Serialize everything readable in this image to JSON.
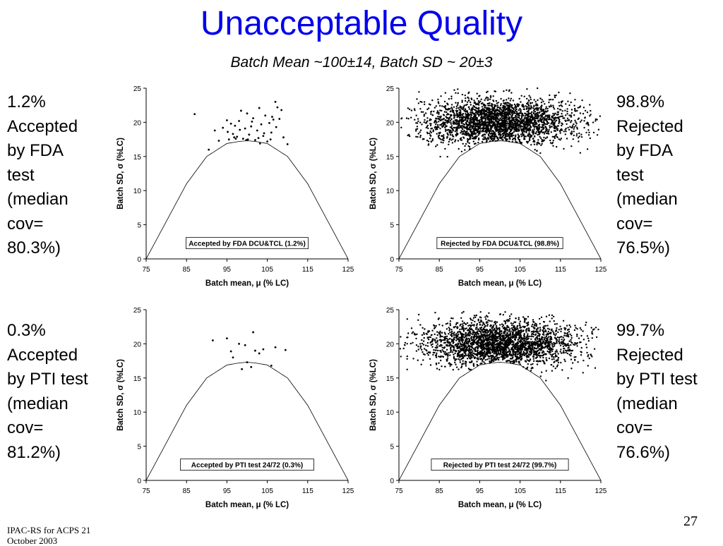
{
  "slide": {
    "title": "Unacceptable Quality",
    "subtitle": "Batch Mean ~100±14, Batch SD ~ 20±3",
    "left_texts": [
      "1.2%\nAccepted\nby FDA\ntest\n(median\ncov=\n80.3%)",
      "0.3%\nAccepted\nby PTI test\n(median\ncov=\n81.2%)"
    ],
    "right_texts": [
      "98.8%\nRejected\nby FDA\ntest\n(median\ncov=\n76.5%)",
      "99.7%\nRejected\nby PTI test\n(median\ncov=\n76.6%)"
    ],
    "footer": "IPAC-RS for ACPS 21\nOctober 2003",
    "page_number": "27"
  },
  "chart_data": [
    {
      "type": "scatter",
      "annotation": "Accepted by FDA DCU&TCL (1.2%)",
      "xlabel": "Batch mean, μ (% LC)",
      "ylabel": "Batch SD, σ (%LC)",
      "xlim": [
        75,
        125
      ],
      "ylim": [
        0,
        25
      ],
      "xticks": [
        75,
        85,
        95,
        105,
        115,
        125
      ],
      "yticks": [
        0,
        5,
        10,
        15,
        20,
        25
      ],
      "boundary": {
        "x": [
          75,
          80,
          85,
          90,
          95,
          98,
          100,
          102,
          105,
          110,
          115,
          120,
          125
        ],
        "y": [
          0,
          5.5,
          11.0,
          15.0,
          16.9,
          17.2,
          17.3,
          17.2,
          16.9,
          15.0,
          11.0,
          5.5,
          0
        ]
      },
      "points": {
        "x": [
          87,
          90.5,
          92,
          94,
          95,
          95.5,
          96,
          96.5,
          97,
          97.5,
          98,
          98.5,
          99,
          99.5,
          100,
          100.5,
          101,
          101.5,
          102,
          102.5,
          103,
          103.5,
          104,
          104.5,
          105,
          105.5,
          106,
          106.5,
          107,
          107.5,
          108,
          109,
          110,
          95.2,
          96.8,
          98.2,
          99.8,
          101.2,
          102.8,
          104.2,
          105.8,
          107.2,
          93,
          108.5,
          100.2,
          97.2,
          103.2,
          106.2
        ],
        "y": [
          21.2,
          16,
          18.8,
          19.2,
          20.3,
          17.5,
          19.8,
          18.3,
          19.5,
          17.9,
          20.2,
          21.7,
          17.6,
          19.1,
          21.3,
          18.2,
          19.4,
          20.6,
          17.4,
          18.8,
          22.1,
          19.7,
          18,
          21,
          17.2,
          19.9,
          18.5,
          20.4,
          23,
          22.2,
          20.5,
          17.8,
          16.8,
          18.6,
          17.8,
          18.9,
          17.4,
          20.1,
          17.7,
          18.4,
          17.5,
          19.3,
          17.3,
          21.8,
          17.5,
          17.6,
          16.9,
          20.8
        ]
      }
    },
    {
      "type": "scatter",
      "annotation": "Rejected by FDA DCU&TCL (98.8%)",
      "xlabel": "Batch mean, μ (% LC)",
      "ylabel": "Batch SD, σ (%LC)",
      "xlim": [
        75,
        125
      ],
      "ylim": [
        0,
        25
      ],
      "xticks": [
        75,
        85,
        95,
        105,
        115,
        125
      ],
      "yticks": [
        0,
        5,
        10,
        15,
        20,
        25
      ],
      "boundary": {
        "x": [
          75,
          80,
          85,
          90,
          95,
          98,
          100,
          102,
          105,
          110,
          115,
          120,
          125
        ],
        "y": [
          0,
          5.5,
          11.0,
          15.0,
          16.9,
          17.2,
          17.3,
          17.2,
          16.9,
          15.0,
          11.0,
          5.5,
          0
        ]
      },
      "cloud": {
        "n": 2600,
        "x_mean": 100,
        "x_sd": 9.5,
        "y_mean": 20,
        "y_sd": 1.7,
        "x_range": [
          75,
          125
        ],
        "y_range": [
          14.5,
          25
        ],
        "exclude_below_boundary": true
      }
    },
    {
      "type": "scatter",
      "annotation": "Accepted by PTI test 24/72 (0.3%)",
      "xlabel": "Batch mean, μ (% LC)",
      "ylabel": "Batch SD, σ (%LC)",
      "xlim": [
        75,
        125
      ],
      "ylim": [
        0,
        25
      ],
      "xticks": [
        75,
        85,
        95,
        105,
        115,
        125
      ],
      "yticks": [
        0,
        5,
        10,
        15,
        20,
        25
      ],
      "boundary": {
        "x": [
          75,
          80,
          85,
          90,
          95,
          98,
          100,
          102,
          105,
          110,
          115,
          120,
          125
        ],
        "y": [
          0,
          5.5,
          11.0,
          15.0,
          16.9,
          17.2,
          17.3,
          17.2,
          16.9,
          15.0,
          11.0,
          5.5,
          0
        ]
      },
      "points": {
        "x": [
          91.5,
          95,
          96,
          96.5,
          98,
          98.7,
          99.5,
          100,
          101,
          101.5,
          102,
          103,
          104,
          106,
          107,
          109.5
        ],
        "y": [
          20.5,
          20.8,
          18.9,
          18,
          20,
          16.3,
          19.8,
          17.3,
          16.6,
          21.7,
          19,
          18.6,
          19.2,
          16.8,
          19.5,
          19.1
        ]
      }
    },
    {
      "type": "scatter",
      "annotation": "Rejected by PTI test 24/72 (99.7%)",
      "xlabel": "Batch mean, μ (% LC)",
      "ylabel": "Batch SD, σ (%LC)",
      "xlim": [
        75,
        125
      ],
      "ylim": [
        0,
        25
      ],
      "xticks": [
        75,
        85,
        95,
        105,
        115,
        125
      ],
      "yticks": [
        0,
        5,
        10,
        15,
        20,
        25
      ],
      "boundary": {
        "x": [
          75,
          80,
          85,
          90,
          95,
          98,
          100,
          102,
          105,
          110,
          115,
          120,
          125
        ],
        "y": [
          0,
          5.5,
          11.0,
          15.0,
          16.9,
          17.2,
          17.3,
          17.2,
          16.9,
          15.0,
          11.0,
          5.5,
          0
        ]
      },
      "cloud": {
        "n": 2600,
        "x_mean": 100,
        "x_sd": 9.5,
        "y_mean": 20,
        "y_sd": 1.7,
        "x_range": [
          75,
          125
        ],
        "y_range": [
          14.5,
          25
        ],
        "exclude_below_boundary": true
      }
    }
  ]
}
